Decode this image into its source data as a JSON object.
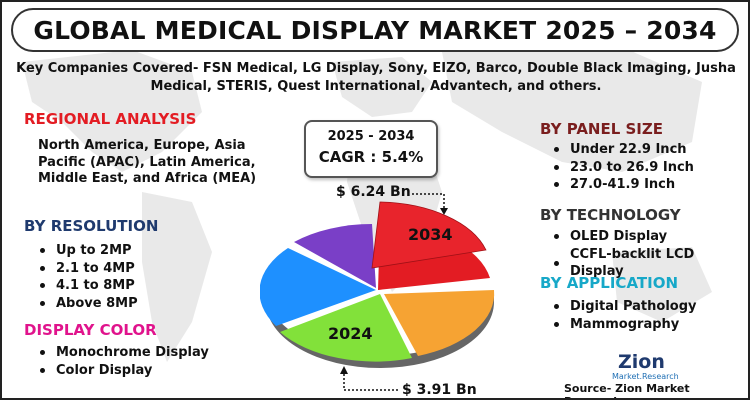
{
  "title": "GLOBAL MEDICAL DISPLAY MARKET 2025 – 2034",
  "companies": "Key Companies Covered- FSN Medical, LG Display, Sony, EIZO, Barco, Double Black Imaging, Jusha Medical, STERIS, Quest International, Advantech, and others.",
  "regional": {
    "heading": "REGIONAL ANALYSIS",
    "text": "North America, Europe, Asia Pacific (APAC), Latin America, Middle East, and Africa (MEA)"
  },
  "resolution": {
    "heading": "BY RESOLUTION",
    "items": [
      "Up to 2MP",
      "2.1 to 4MP",
      "4.1 to 8MP",
      "Above 8MP"
    ]
  },
  "display_color": {
    "heading": "DISPLAY COLOR",
    "items": [
      "Monochrome Display",
      "Color Display"
    ]
  },
  "panel_size": {
    "heading": "BY PANEL SIZE",
    "items": [
      "Under 22.9 Inch",
      "23.0 to 26.9 Inch",
      "27.0-41.9 Inch"
    ]
  },
  "technology": {
    "heading": "BY TECHNOLOGY",
    "items": [
      "OLED Display",
      "CCFL-backlit LCD Display"
    ]
  },
  "application": {
    "heading": "BY APPLICATION",
    "items": [
      "Digital Pathology",
      "Mammography"
    ]
  },
  "cagr": {
    "years": "2025 - 2034",
    "rate": "CAGR : 5.4%"
  },
  "values": {
    "end": "$ 6.24 Bn",
    "start": "$ 3.91 Bn",
    "end_year": "2034",
    "start_year": "2024"
  },
  "logo": {
    "name": "Zion",
    "sub": "Market.Research"
  },
  "source": "Source- Zion Market Research",
  "colors": {
    "red": "#e31c23",
    "orange": "#f6a333",
    "green": "#82e13a",
    "blue": "#1e90ff",
    "purple": "#7a3fc7",
    "teal": "#17a8c8",
    "magenta": "#e0138c",
    "navy": "#1f3a6e"
  }
}
